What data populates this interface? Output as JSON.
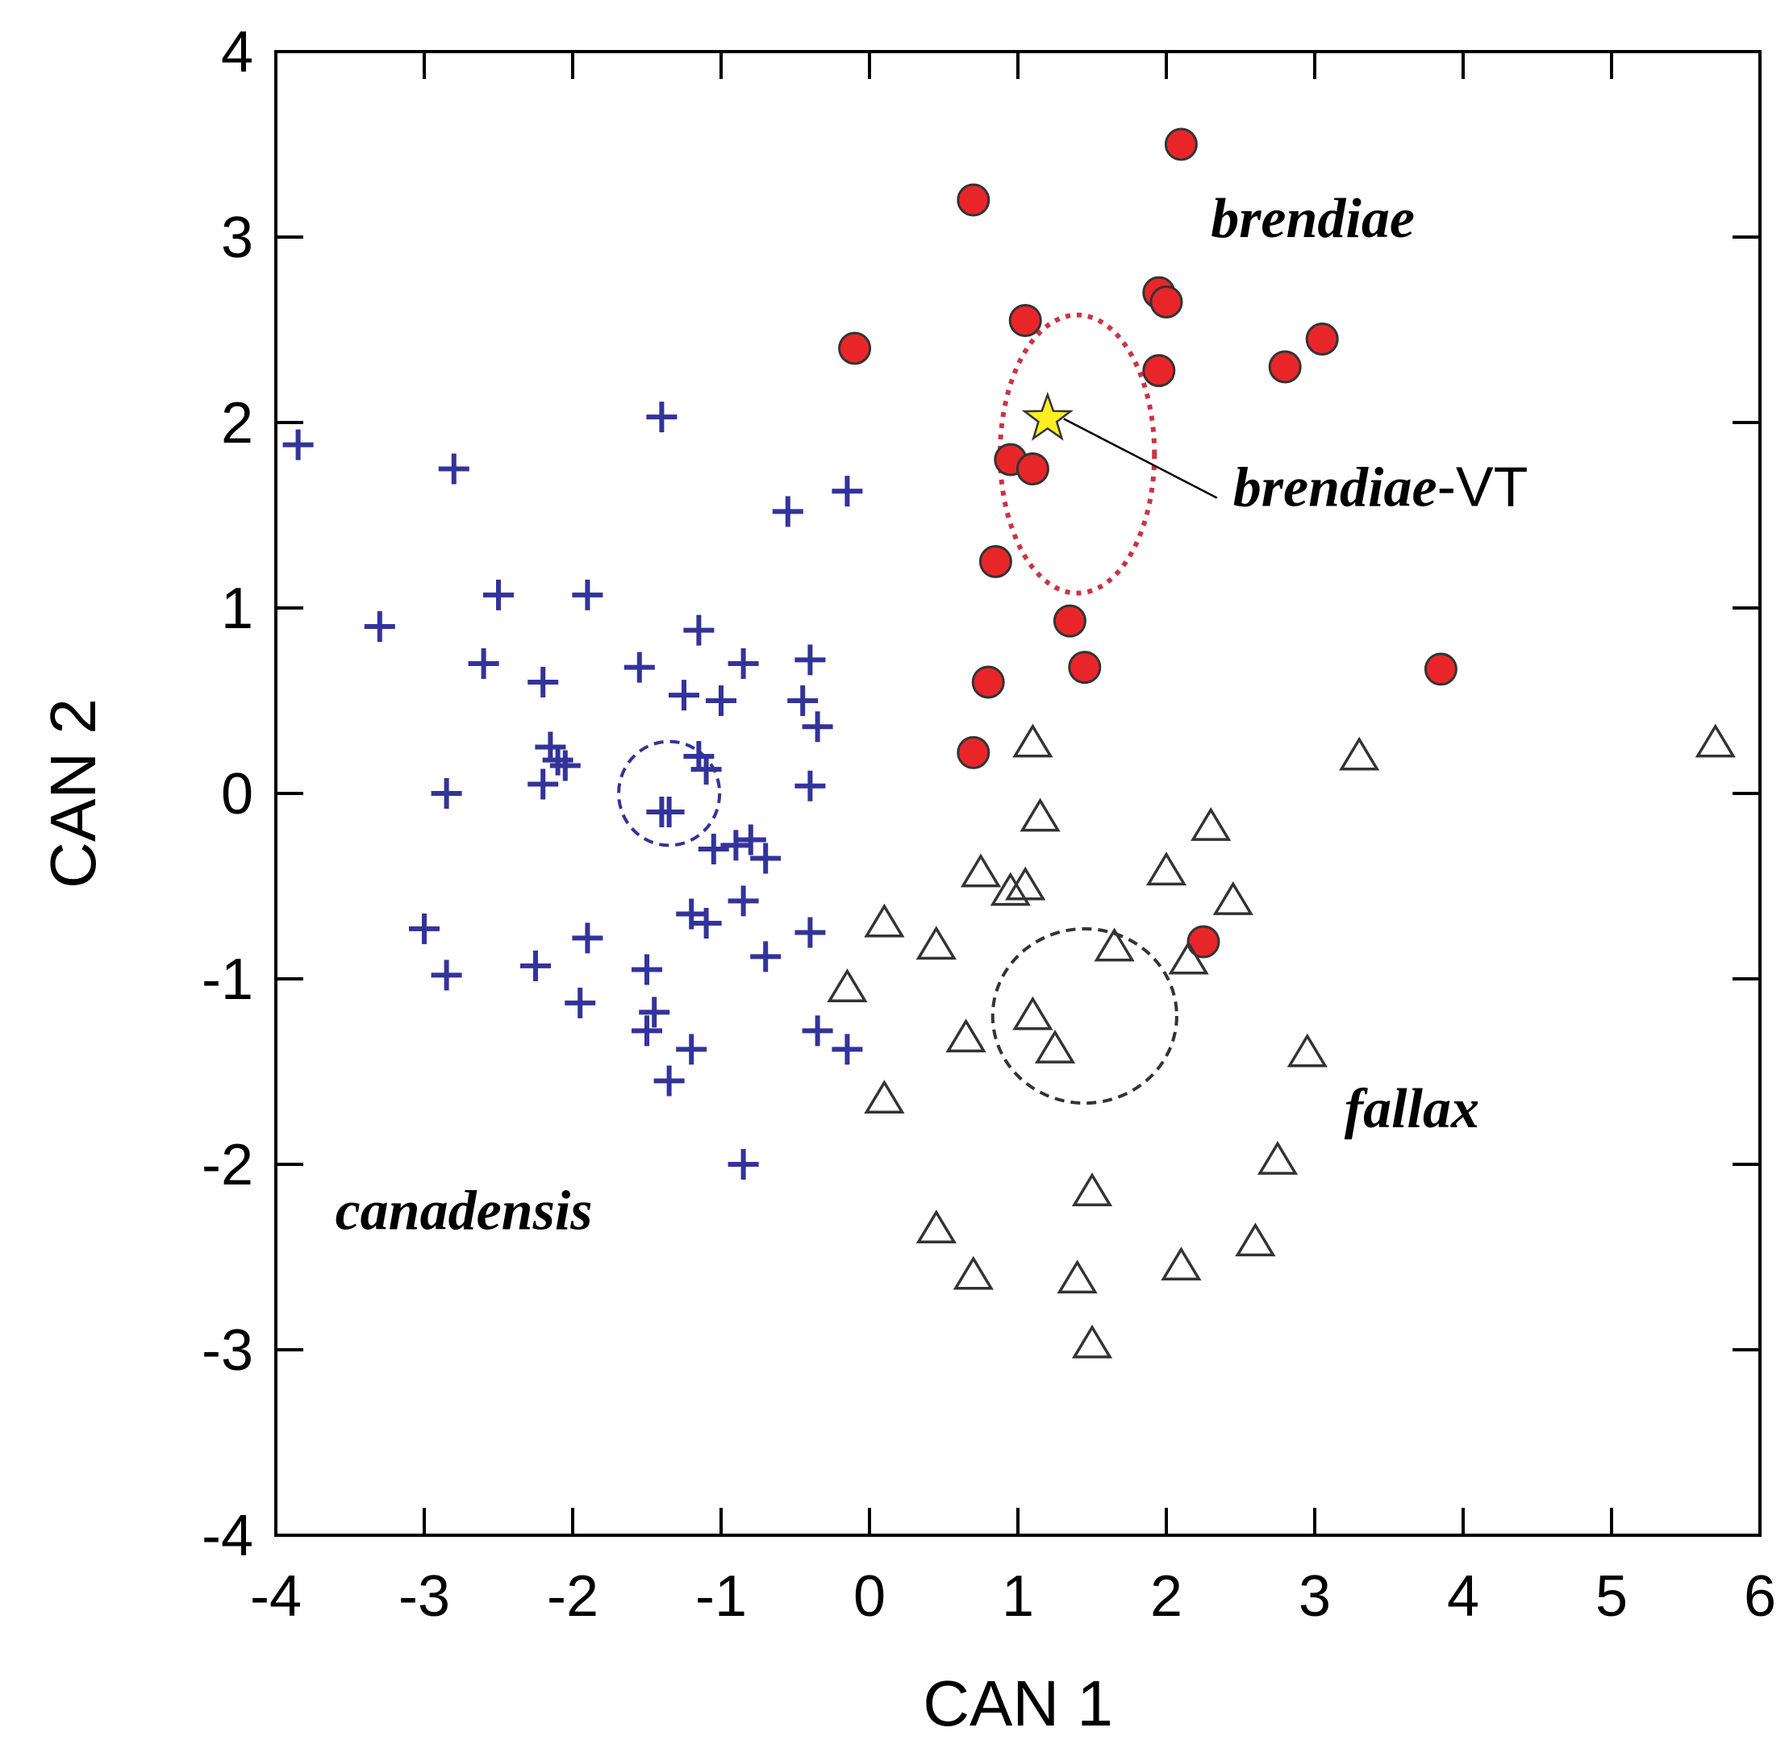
{
  "chart_data": {
    "type": "scatter",
    "title": "",
    "xlabel": "CAN 1",
    "ylabel": "CAN 2",
    "xlim": [
      -4,
      6
    ],
    "ylim": [
      -4,
      4
    ],
    "xticks": [
      "-4",
      "-3",
      "-2",
      "-1",
      "0",
      "1",
      "2",
      "3",
      "4",
      "5",
      "6"
    ],
    "yticks": [
      "-4",
      "-3",
      "-2",
      "-1",
      "0",
      "1",
      "2",
      "3",
      "4"
    ],
    "grid": false,
    "legend": "none",
    "colors": {
      "brendiae": "#e8262a",
      "canadensis": "#33339a",
      "fallax": "#333333",
      "star": "#ffee22"
    },
    "series": [
      {
        "marker": "circle",
        "points": [
          [
            2.1,
            3.5
          ],
          [
            0.7,
            3.2
          ],
          [
            1.95,
            2.7
          ],
          [
            2.0,
            2.65
          ],
          [
            1.05,
            2.55
          ],
          [
            -0.1,
            2.4
          ],
          [
            3.05,
            2.45
          ],
          [
            2.8,
            2.3
          ],
          [
            1.95,
            2.28
          ],
          [
            0.95,
            1.8
          ],
          [
            1.1,
            1.75
          ],
          [
            0.85,
            1.25
          ],
          [
            1.35,
            0.93
          ],
          [
            1.45,
            0.68
          ],
          [
            3.85,
            0.67
          ],
          [
            0.8,
            0.6
          ],
          [
            0.7,
            0.22
          ],
          [
            2.25,
            -0.8
          ]
        ]
      },
      {
        "marker": "plus",
        "points": [
          [
            -3.85,
            1.88
          ],
          [
            -2.8,
            1.75
          ],
          [
            -1.4,
            2.03
          ],
          [
            -0.15,
            1.63
          ],
          [
            -0.55,
            1.52
          ],
          [
            -2.5,
            1.07
          ],
          [
            -1.9,
            1.07
          ],
          [
            -3.3,
            0.9
          ],
          [
            -1.15,
            0.88
          ],
          [
            -2.6,
            0.7
          ],
          [
            -2.2,
            0.6
          ],
          [
            -1.55,
            0.68
          ],
          [
            -0.85,
            0.7
          ],
          [
            -0.4,
            0.72
          ],
          [
            -1.25,
            0.53
          ],
          [
            -1.0,
            0.5
          ],
          [
            -0.45,
            0.5
          ],
          [
            -0.35,
            0.36
          ],
          [
            -2.15,
            0.25
          ],
          [
            -2.1,
            0.18
          ],
          [
            -2.05,
            0.15
          ],
          [
            -2.2,
            0.05
          ],
          [
            -1.15,
            0.2
          ],
          [
            -1.1,
            0.13
          ],
          [
            -2.85,
            0.0
          ],
          [
            -0.4,
            0.04
          ],
          [
            -1.4,
            -0.1
          ],
          [
            -1.35,
            -0.1
          ],
          [
            -1.05,
            -0.3
          ],
          [
            -0.9,
            -0.28
          ],
          [
            -0.8,
            -0.25
          ],
          [
            -0.7,
            -0.35
          ],
          [
            -1.2,
            -0.65
          ],
          [
            -1.1,
            -0.7
          ],
          [
            -0.85,
            -0.58
          ],
          [
            -0.4,
            -0.75
          ],
          [
            -3.0,
            -0.73
          ],
          [
            -1.9,
            -0.78
          ],
          [
            -2.25,
            -0.93
          ],
          [
            -1.5,
            -0.95
          ],
          [
            -0.7,
            -0.88
          ],
          [
            -2.85,
            -0.98
          ],
          [
            -1.95,
            -1.13
          ],
          [
            -1.45,
            -1.18
          ],
          [
            -1.5,
            -1.28
          ],
          [
            -1.2,
            -1.38
          ],
          [
            -0.35,
            -1.28
          ],
          [
            -0.15,
            -1.38
          ],
          [
            -1.35,
            -1.55
          ],
          [
            -0.85,
            -2.0
          ]
        ]
      },
      {
        "marker": "triangle",
        "points": [
          [
            1.1,
            0.27
          ],
          [
            3.3,
            0.2
          ],
          [
            5.7,
            0.27
          ],
          [
            1.15,
            -0.13
          ],
          [
            2.3,
            -0.18
          ],
          [
            0.75,
            -0.43
          ],
          [
            2.0,
            -0.42
          ],
          [
            0.95,
            -0.53
          ],
          [
            1.05,
            -0.5
          ],
          [
            2.45,
            -0.58
          ],
          [
            0.1,
            -0.7
          ],
          [
            0.45,
            -0.82
          ],
          [
            1.65,
            -0.83
          ],
          [
            2.15,
            -0.9
          ],
          [
            -0.15,
            -1.05
          ],
          [
            1.1,
            -1.2
          ],
          [
            0.65,
            -1.32
          ],
          [
            1.25,
            -1.38
          ],
          [
            2.95,
            -1.4
          ],
          [
            0.1,
            -1.65
          ],
          [
            2.75,
            -1.98
          ],
          [
            1.5,
            -2.15
          ],
          [
            0.45,
            -2.35
          ],
          [
            2.6,
            -2.42
          ],
          [
            2.1,
            -2.55
          ],
          [
            0.7,
            -2.6
          ],
          [
            1.4,
            -2.62
          ],
          [
            1.5,
            -2.97
          ]
        ]
      }
    ],
    "star_point": [
      1.2,
      2.02
    ],
    "ellipses": [
      {
        "cx": 1.4,
        "cy": 1.83,
        "rx": 0.52,
        "ry": 0.75,
        "color": "#cc3344",
        "dash": "dotted"
      },
      {
        "cx": -1.35,
        "cy": 0.0,
        "rx": 0.34,
        "ry": 0.28,
        "color": "#33339a",
        "dash": "dashed"
      },
      {
        "cx": 1.45,
        "cy": -1.2,
        "rx": 0.62,
        "ry": 0.47,
        "color": "#333333",
        "dash": "dashed"
      }
    ],
    "annotations": [
      {
        "text": "brendiae",
        "x": 2.3,
        "y": 3.0
      },
      {
        "text": "fallax",
        "x": 3.2,
        "y": -1.8
      },
      {
        "text": "canadensis",
        "x": -3.6,
        "y": -2.35
      }
    ],
    "star_label": {
      "italic_part": "brendiae",
      "plain_part": "-VT",
      "x": 2.45,
      "y": 1.55
    }
  }
}
